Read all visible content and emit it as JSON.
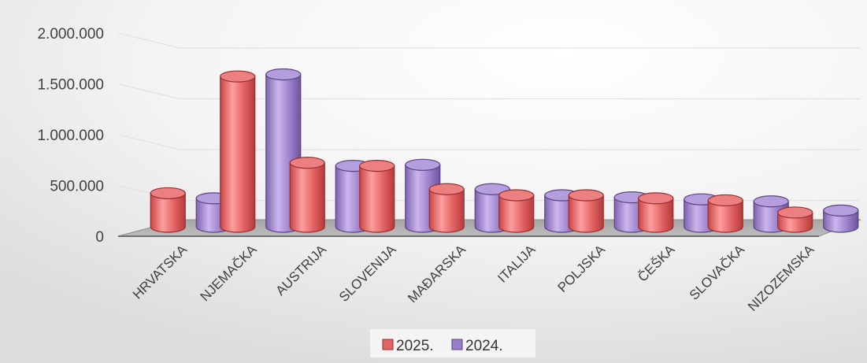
{
  "chart_data": {
    "type": "bar",
    "style": "3d-cylinder",
    "title": "",
    "xlabel": "",
    "ylabel": "",
    "categories": [
      "HRVATSKA",
      "NJEMAČKA",
      "AUSTRIJA",
      "SLOVENIJA",
      "MAĐARSKA",
      "ITALIJA",
      "POLJSKA",
      "ČEŠKA",
      "SLOVAČKA",
      "NIZOZEMSKA"
    ],
    "series": [
      {
        "name": "2025.",
        "color": "#e06666",
        "values": [
          330000,
          1480000,
          630000,
          600000,
          370000,
          310000,
          310000,
          280000,
          260000,
          140000
        ]
      },
      {
        "name": "2024.",
        "color": "#9b7fc6",
        "values": [
          280000,
          1500000,
          600000,
          610000,
          370000,
          310000,
          290000,
          270000,
          250000,
          160000
        ]
      }
    ],
    "ylim": [
      0,
      2000000
    ],
    "yticks": [
      0,
      500000,
      1000000,
      1500000,
      2000000
    ],
    "ytick_labels": [
      "0",
      "500.000",
      "1.000.000",
      "1.500.000",
      "2.000.000"
    ],
    "grid": true,
    "legend": "bottom"
  }
}
